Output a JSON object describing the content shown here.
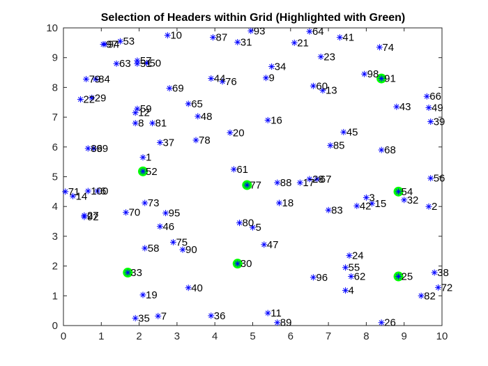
{
  "chart_data": {
    "type": "scatter",
    "title": "Selection of Headers within Grid (Highlighted with Green)",
    "xlabel": "",
    "ylabel": "",
    "xlim": [
      0,
      10
    ],
    "ylim": [
      0,
      10
    ],
    "xticks": [
      "0",
      "1",
      "2",
      "3",
      "4",
      "5",
      "6",
      "7",
      "8",
      "9",
      "10"
    ],
    "yticks": [
      "0",
      "1",
      "2",
      "3",
      "4",
      "5",
      "6",
      "7",
      "8",
      "9",
      "10"
    ],
    "grid": false,
    "marker": "asterisk",
    "marker_color": "#0000ff",
    "highlight_color": "#00ff00",
    "points": [
      {
        "label": "1",
        "x": 2.1,
        "y": 5.65
      },
      {
        "label": "2",
        "x": 9.65,
        "y": 4.0
      },
      {
        "label": "4",
        "x": 7.45,
        "y": 1.18
      },
      {
        "label": "5",
        "x": 5.0,
        "y": 3.3
      },
      {
        "label": "7",
        "x": 2.5,
        "y": 0.32
      },
      {
        "label": "8",
        "x": 1.9,
        "y": 6.8
      },
      {
        "label": "9",
        "x": 5.35,
        "y": 8.32
      },
      {
        "label": "10",
        "x": 2.75,
        "y": 9.75
      },
      {
        "label": "11",
        "x": 5.4,
        "y": 0.42
      },
      {
        "label": "12",
        "x": 1.9,
        "y": 7.15
      },
      {
        "label": "13",
        "x": 6.85,
        "y": 7.9
      },
      {
        "label": "14",
        "x": 0.25,
        "y": 4.35
      },
      {
        "label": "15",
        "x": 8.15,
        "y": 4.1
      },
      {
        "label": "16",
        "x": 5.4,
        "y": 6.9
      },
      {
        "label": "17",
        "x": 6.25,
        "y": 4.8
      },
      {
        "label": "18",
        "x": 5.7,
        "y": 4.12
      },
      {
        "label": "19",
        "x": 2.1,
        "y": 1.03
      },
      {
        "label": "20",
        "x": 4.4,
        "y": 6.48
      },
      {
        "label": "21",
        "x": 6.1,
        "y": 9.5
      },
      {
        "label": "22",
        "x": 0.45,
        "y": 7.6
      },
      {
        "label": "23",
        "x": 6.8,
        "y": 9.03
      },
      {
        "label": "24",
        "x": 7.55,
        "y": 2.35
      },
      {
        "label": "25",
        "x": 8.85,
        "y": 1.65,
        "highlight": true
      },
      {
        "label": "26",
        "x": 8.4,
        "y": 0.1
      },
      {
        "label": "27",
        "x": 0.55,
        "y": 3.7
      },
      {
        "label": "29",
        "x": 0.75,
        "y": 7.65
      },
      {
        "label": "30",
        "x": 4.6,
        "y": 2.08,
        "highlight": true
      },
      {
        "label": "31",
        "x": 4.6,
        "y": 9.52
      },
      {
        "label": "32",
        "x": 9.0,
        "y": 4.22
      },
      {
        "label": "33",
        "x": 1.7,
        "y": 1.78,
        "highlight": true
      },
      {
        "label": "34",
        "x": 5.5,
        "y": 8.7
      },
      {
        "label": "35",
        "x": 1.9,
        "y": 0.25
      },
      {
        "label": "36",
        "x": 3.9,
        "y": 0.33
      },
      {
        "label": "37",
        "x": 2.55,
        "y": 6.15
      },
      {
        "label": "38",
        "x": 9.8,
        "y": 1.78
      },
      {
        "label": "39",
        "x": 9.7,
        "y": 6.85
      },
      {
        "label": "40",
        "x": 3.3,
        "y": 1.27
      },
      {
        "label": "41",
        "x": 7.3,
        "y": 9.68
      },
      {
        "label": "42",
        "x": 7.75,
        "y": 4.02
      },
      {
        "label": "43",
        "x": 8.8,
        "y": 7.35
      },
      {
        "label": "44",
        "x": 3.9,
        "y": 8.3
      },
      {
        "label": "45",
        "x": 7.4,
        "y": 6.5
      },
      {
        "label": "46",
        "x": 2.55,
        "y": 3.33
      },
      {
        "label": "47",
        "x": 5.3,
        "y": 2.72
      },
      {
        "label": "48",
        "x": 3.55,
        "y": 7.03
      },
      {
        "label": "49",
        "x": 9.65,
        "y": 7.32
      },
      {
        "label": "50",
        "x": 2.2,
        "y": 8.82
      },
      {
        "label": "52",
        "x": 2.1,
        "y": 5.18,
        "highlight": true
      },
      {
        "label": "53",
        "x": 1.5,
        "y": 9.55
      },
      {
        "label": "54",
        "x": 8.85,
        "y": 4.5,
        "highlight": true
      },
      {
        "label": "55",
        "x": 7.45,
        "y": 1.95
      },
      {
        "label": "56",
        "x": 9.7,
        "y": 4.95
      },
      {
        "label": "57",
        "x": 1.95,
        "y": 8.9
      },
      {
        "label": "58",
        "x": 2.15,
        "y": 2.6
      },
      {
        "label": "59",
        "x": 1.95,
        "y": 7.28
      },
      {
        "label": "60",
        "x": 6.6,
        "y": 8.05
      },
      {
        "label": "61",
        "x": 4.5,
        "y": 5.25
      },
      {
        "label": "62",
        "x": 7.6,
        "y": 1.65
      },
      {
        "label": "63",
        "x": 1.4,
        "y": 8.8
      },
      {
        "label": "64",
        "x": 6.5,
        "y": 9.88
      },
      {
        "label": "65",
        "x": 3.3,
        "y": 7.45
      },
      {
        "label": "66",
        "x": 9.6,
        "y": 7.7
      },
      {
        "label": "68",
        "x": 8.4,
        "y": 5.9
      },
      {
        "label": "69",
        "x": 2.8,
        "y": 7.97
      },
      {
        "label": "70",
        "x": 1.65,
        "y": 3.8
      },
      {
        "label": "71",
        "x": 0.05,
        "y": 4.5
      },
      {
        "label": "72",
        "x": 9.9,
        "y": 1.28
      },
      {
        "label": "73",
        "x": 2.15,
        "y": 4.12
      },
      {
        "label": "74",
        "x": 8.35,
        "y": 9.35
      },
      {
        "label": "75",
        "x": 2.9,
        "y": 2.8
      },
      {
        "label": "76",
        "x": 4.2,
        "y": 8.2
      },
      {
        "label": "77",
        "x": 4.85,
        "y": 4.72,
        "highlight": true
      },
      {
        "label": "78",
        "x": 3.5,
        "y": 6.23
      },
      {
        "label": "80",
        "x": 4.65,
        "y": 3.45
      },
      {
        "label": "81",
        "x": 2.35,
        "y": 6.8
      },
      {
        "label": "82",
        "x": 9.45,
        "y": 1.0
      },
      {
        "label": "83",
        "x": 7.0,
        "y": 3.88
      },
      {
        "label": "84",
        "x": 0.85,
        "y": 8.28
      },
      {
        "label": "85",
        "x": 7.05,
        "y": 6.05
      },
      {
        "label": "87",
        "x": 3.95,
        "y": 9.68
      },
      {
        "label": "88",
        "x": 5.65,
        "y": 4.8
      },
      {
        "label": "89",
        "x": 5.65,
        "y": 0.1
      },
      {
        "label": "90",
        "x": 3.15,
        "y": 2.55
      },
      {
        "label": "91",
        "x": 8.4,
        "y": 8.3,
        "highlight": true
      },
      {
        "label": "93",
        "x": 4.95,
        "y": 9.9
      },
      {
        "label": "94",
        "x": 1.1,
        "y": 9.45
      },
      {
        "label": "95",
        "x": 2.7,
        "y": 3.78
      },
      {
        "label": "96",
        "x": 6.6,
        "y": 1.62
      },
      {
        "label": "97",
        "x": 1.05,
        "y": 9.45
      },
      {
        "label": "98",
        "x": 7.95,
        "y": 8.45
      },
      {
        "label": "99",
        "x": 0.8,
        "y": 5.95
      },
      {
        "label": "100",
        "x": 0.65,
        "y": 4.52
      },
      {
        "label": "86",
        "x": 0.65,
        "y": 5.95
      },
      {
        "label": "3",
        "x": 8.0,
        "y": 4.3
      },
      {
        "label": "6",
        "x": 0.9,
        "y": 4.52
      },
      {
        "label": "28",
        "x": 6.5,
        "y": 4.92
      },
      {
        "label": "67",
        "x": 6.7,
        "y": 4.92
      },
      {
        "label": "92",
        "x": 0.55,
        "y": 3.65
      },
      {
        "label": "79",
        "x": 0.6,
        "y": 8.28
      },
      {
        "label": "51",
        "x": 1.95,
        "y": 8.8
      }
    ]
  }
}
